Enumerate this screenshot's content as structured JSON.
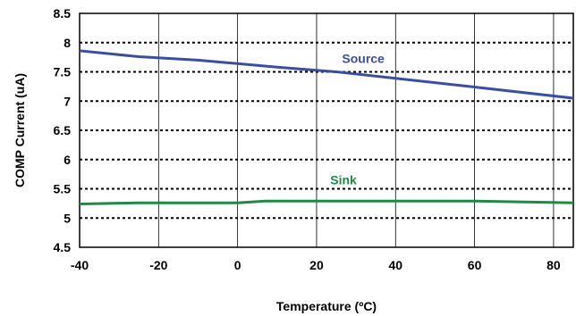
{
  "chart_data": {
    "type": "line",
    "xlabel": "Temperature (ºC)",
    "ylabel": "COMP Current  (uA)",
    "xlim": [
      -40,
      85
    ],
    "ylim": [
      4.5,
      8.5
    ],
    "x_ticks": [
      -40,
      -20,
      0,
      20,
      40,
      60,
      80
    ],
    "y_ticks": [
      4.5,
      5,
      5.5,
      6,
      6.5,
      7,
      7.5,
      8,
      8.5
    ],
    "x_tick_labels": [
      "-40",
      "-20",
      "0",
      "20",
      "40",
      "60",
      "80"
    ],
    "y_tick_labels": [
      "4.5",
      "5",
      "5.5",
      "6",
      "6.5",
      "7",
      "7.5",
      "8",
      "8.5"
    ],
    "grid": {
      "horizontal": "dotted",
      "vertical": "solid"
    },
    "series": [
      {
        "name": "Source",
        "color": "#3b4fa0",
        "x": [
          -40,
          -25,
          -10,
          0,
          10,
          25,
          40,
          60,
          85
        ],
        "y": [
          7.86,
          7.76,
          7.7,
          7.64,
          7.58,
          7.5,
          7.39,
          7.24,
          7.05
        ]
      },
      {
        "name": "Sink",
        "color": "#1e8a46",
        "x": [
          -40,
          -25,
          -10,
          0,
          7,
          25,
          40,
          60,
          85
        ],
        "y": [
          5.24,
          5.26,
          5.26,
          5.26,
          5.29,
          5.29,
          5.29,
          5.29,
          5.26
        ]
      }
    ]
  }
}
